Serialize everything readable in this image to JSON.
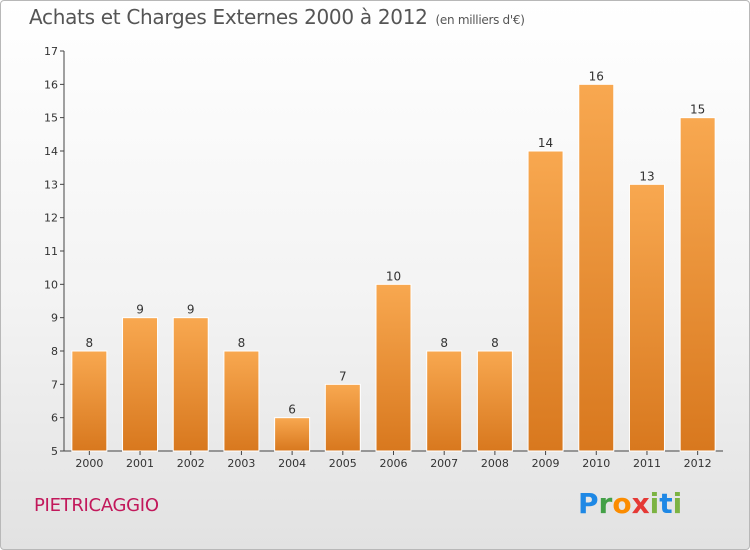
{
  "title": "Achats et Charges Externes 2000 à 2012",
  "unit": "(en milliers d'€)",
  "commune": "PIETRICAGGIO",
  "logo": {
    "p": "P",
    "r": "r",
    "o": "o",
    "x": "x",
    "i": "i",
    "t": "t",
    "i2": "i"
  },
  "colors": {
    "bar_top": "#f8a850",
    "bar_bottom": "#d8781e",
    "axis": "#444444",
    "grid": "#cfcfcf"
  },
  "chart_data": {
    "type": "bar",
    "categories": [
      "2000",
      "2001",
      "2002",
      "2003",
      "2004",
      "2005",
      "2006",
      "2007",
      "2008",
      "2009",
      "2010",
      "2011",
      "2012"
    ],
    "values": [
      8,
      9,
      9,
      8,
      6,
      7,
      10,
      8,
      8,
      14,
      16,
      13,
      15
    ],
    "data_labels": [
      "8",
      "9",
      "9",
      "8",
      "6",
      "7",
      "10",
      "8",
      "8",
      "14",
      "16",
      "13",
      "15"
    ],
    "ylim": [
      5,
      17
    ],
    "yticks": [
      "5",
      "6",
      "7",
      "8",
      "9",
      "10",
      "11",
      "12",
      "13",
      "14",
      "15",
      "16",
      "17"
    ],
    "grid": false,
    "title": "Achats et Charges Externes 2000 à 2012",
    "xlabel": "",
    "ylabel": ""
  }
}
